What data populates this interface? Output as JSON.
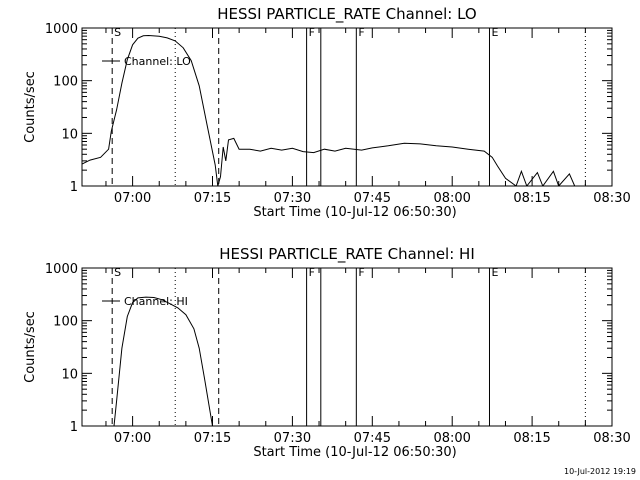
{
  "chart_data": [
    {
      "type": "line",
      "title": "HESSI PARTICLE_RATE Channel: LO",
      "xlabel": "Start Time (10-Jul-12 06:50:30)",
      "ylabel": "Counts/sec",
      "y_scale": "log",
      "ylim": [
        1,
        1000
      ],
      "xlim": [
        "06:50:30",
        "08:30"
      ],
      "x_tick_labels": [
        "07:00",
        "07:15",
        "07:30",
        "07:45",
        "08:00",
        "08:15",
        "08:30"
      ],
      "y_tick_labels": [
        "1",
        "10",
        "100",
        "1000"
      ],
      "legend": "top-left",
      "series": [
        {
          "name": "Channel: LO",
          "points": [
            [
              "06:50:30",
              2.6
            ],
            [
              "06:52:00",
              3.1
            ],
            [
              "06:54:00",
              3.5
            ],
            [
              "06:55:30",
              5.0
            ],
            [
              "06:56:00",
              11
            ],
            [
              "06:57:00",
              28
            ],
            [
              "06:58:00",
              90
            ],
            [
              "06:59:00",
              250
            ],
            [
              "07:00:00",
              480
            ],
            [
              "07:01:00",
              640
            ],
            [
              "07:02:00",
              710
            ],
            [
              "07:03:00",
              720
            ],
            [
              "07:05:00",
              700
            ],
            [
              "07:06:30",
              650
            ],
            [
              "07:08:00",
              570
            ],
            [
              "07:09:30",
              420
            ],
            [
              "07:11:00",
              240
            ],
            [
              "07:12:30",
              80
            ],
            [
              "07:14:00",
              14
            ],
            [
              "07:15:30",
              2.5
            ],
            [
              "07:16:00",
              1.0
            ],
            [
              "07:16:30",
              1.5
            ],
            [
              "07:17:00",
              5.5
            ],
            [
              "07:17:30",
              3.0
            ],
            [
              "07:18:00",
              7.5
            ],
            [
              "07:19:00",
              8.0
            ],
            [
              "07:20:00",
              5.0
            ],
            [
              "07:22:00",
              5.0
            ],
            [
              "07:24:00",
              4.6
            ],
            [
              "07:26:00",
              5.2
            ],
            [
              "07:28:00",
              4.8
            ],
            [
              "07:30:00",
              5.2
            ],
            [
              "07:32:00",
              4.5
            ],
            [
              "07:34:00",
              4.3
            ],
            [
              "07:36:00",
              5.0
            ],
            [
              "07:38:00",
              4.6
            ],
            [
              "07:40:00",
              5.2
            ],
            [
              "07:43:00",
              4.8
            ],
            [
              "07:45:00",
              5.3
            ],
            [
              "07:48:00",
              5.8
            ],
            [
              "07:51:00",
              6.5
            ],
            [
              "07:54:00",
              6.3
            ],
            [
              "07:57:00",
              5.8
            ],
            [
              "08:00:00",
              5.5
            ],
            [
              "08:03:00",
              5.0
            ],
            [
              "08:06:00",
              4.6
            ],
            [
              "08:07:30",
              3.5
            ],
            [
              "08:08:30",
              2.4
            ],
            [
              "08:10:00",
              1.4
            ],
            [
              "08:12:00",
              1.0
            ],
            [
              "08:13:00",
              1.9
            ],
            [
              "08:14:00",
              1.0
            ],
            [
              "08:16:00",
              1.8
            ],
            [
              "08:17:00",
              1.0
            ],
            [
              "08:19:00",
              1.9
            ],
            [
              "08:20:00",
              1.0
            ],
            [
              "08:22:00",
              1.7
            ],
            [
              "08:23:00",
              1.0
            ]
          ]
        }
      ],
      "event_markers": [
        {
          "label": "S",
          "time": "06:56:10",
          "style": "dashed"
        },
        {
          "label": "",
          "time": "07:08:00",
          "style": "dotted"
        },
        {
          "label": "",
          "time": "07:16:10",
          "style": "dashed"
        },
        {
          "label": "F",
          "time": "07:32:40",
          "style": "solid"
        },
        {
          "label": "",
          "time": "07:35:20",
          "style": "solid"
        },
        {
          "label": "F",
          "time": "07:42:00",
          "style": "solid"
        },
        {
          "label": "E",
          "time": "08:07:00",
          "style": "solid"
        },
        {
          "label": "",
          "time": "08:25:00",
          "style": "dotted"
        }
      ]
    },
    {
      "type": "line",
      "title": "HESSI PARTICLE_RATE Channel: HI",
      "xlabel": "Start Time (10-Jul-12 06:50:30)",
      "ylabel": "Counts/sec",
      "y_scale": "log",
      "ylim": [
        1,
        1000
      ],
      "xlim": [
        "06:50:30",
        "08:30"
      ],
      "x_tick_labels": [
        "07:00",
        "07:15",
        "07:30",
        "07:45",
        "08:00",
        "08:15",
        "08:30"
      ],
      "y_tick_labels": [
        "1",
        "10",
        "100",
        "1000"
      ],
      "legend": "top-left",
      "series": [
        {
          "name": "Channel: HI",
          "points": [
            [
              "06:56:30",
              1.0
            ],
            [
              "06:57:00",
              3.0
            ],
            [
              "06:58:00",
              30
            ],
            [
              "06:59:00",
              120
            ],
            [
              "07:00:00",
              220
            ],
            [
              "07:01:00",
              270
            ],
            [
              "07:02:30",
              280
            ],
            [
              "07:04:00",
              275
            ],
            [
              "07:05:30",
              250
            ],
            [
              "07:07:00",
              210
            ],
            [
              "07:08:30",
              175
            ],
            [
              "07:10:00",
              130
            ],
            [
              "07:11:30",
              70
            ],
            [
              "07:12:30",
              30
            ],
            [
              "07:13:30",
              8
            ],
            [
              "07:14:30",
              2.0
            ],
            [
              "07:15:00",
              1.0
            ]
          ]
        }
      ],
      "event_markers": [
        {
          "label": "S",
          "time": "06:56:10",
          "style": "dashed"
        },
        {
          "label": "",
          "time": "07:08:00",
          "style": "dotted"
        },
        {
          "label": "",
          "time": "07:16:10",
          "style": "dashed"
        },
        {
          "label": "F",
          "time": "07:32:40",
          "style": "solid"
        },
        {
          "label": "",
          "time": "07:35:20",
          "style": "solid"
        },
        {
          "label": "F",
          "time": "07:42:00",
          "style": "solid"
        },
        {
          "label": "E",
          "time": "08:07:00",
          "style": "solid"
        },
        {
          "label": "",
          "time": "08:25:00",
          "style": "dotted"
        }
      ]
    }
  ],
  "footer": {
    "timestamp": "10-Jul-2012 19:19"
  }
}
